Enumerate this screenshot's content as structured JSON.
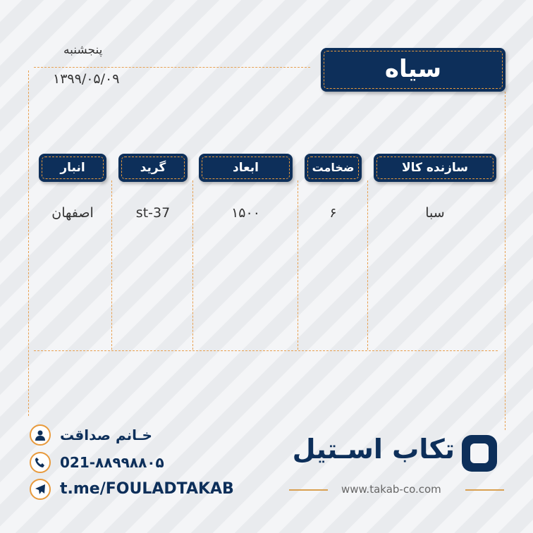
{
  "date": {
    "weekday": "پنجشنبه",
    "date": "۱۳۹۹/۰۵/۰۹"
  },
  "title": "سیاه",
  "table": {
    "headers": [
      "سازنده کالا",
      "ضخامت",
      "ابعاد",
      "گرید",
      "انبار"
    ],
    "values": [
      "سبا",
      "۶",
      "۱۵۰۰",
      "st-37",
      "اصفهان"
    ]
  },
  "contact": {
    "name": "خـانم صداقت",
    "phone": "021-۸۸۹۹۸۸۰۵",
    "telegram": "t.me/FOULADTAKAB"
  },
  "brand": {
    "name": "تکاب اسـتیل",
    "website": "www.takab-co.com"
  },
  "colors": {
    "navy": "#0d2f5a",
    "accent": "#e89a3c"
  }
}
